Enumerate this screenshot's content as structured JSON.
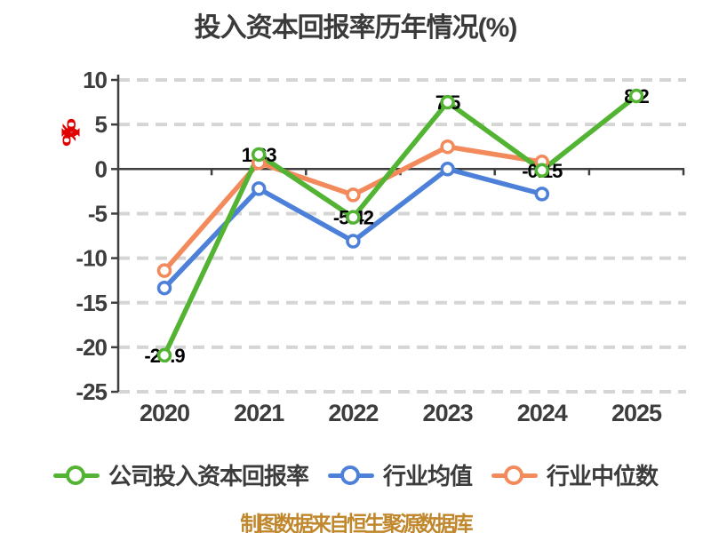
{
  "title": "投入资本回报率历年情况(%)",
  "unit_mark": {
    "text": "(%)",
    "color": "#e10000"
  },
  "source_note": {
    "text": "制图数据来自恒生聚源数据库",
    "color": "#c0872c"
  },
  "chart_data": {
    "type": "line",
    "title": "投入资本回报率历年情况(%)",
    "categories": [
      "2020",
      "2021",
      "2022",
      "2023",
      "2024",
      "2025"
    ],
    "y_ticks": [
      10,
      5,
      0,
      -5,
      -10,
      -15,
      -20,
      -25
    ],
    "ylim": [
      -25,
      10
    ],
    "xlabel": "",
    "ylabel": "",
    "grid": "horizontal-dashed",
    "legend_position": "bottom",
    "colors": {
      "grid": "#d5d5d5",
      "axis": "#3f3f3f",
      "tick_label": "#3d3d3d",
      "data_label": "#000000",
      "background": "#ffffff"
    },
    "series": [
      {
        "name": "公司投入资本回报率",
        "color": "#53b332",
        "values": [
          -20.9,
          1.63,
          -5.42,
          7.5,
          -0.15,
          8.2
        ],
        "point_labels": [
          "-20.9",
          "1.63",
          "-5.42",
          "7.5",
          "-0.15",
          "8.2"
        ],
        "labels_shown": true
      },
      {
        "name": "行业均值",
        "color": "#4d80d8",
        "values": [
          -13.35,
          -2.2,
          -8.1,
          0,
          -2.8,
          null
        ],
        "point_labels": [],
        "labels_shown": false
      },
      {
        "name": "行业中位数",
        "color": "#f28a5c",
        "values": [
          -11.4,
          0.7,
          -2.9,
          2.5,
          0.8,
          null
        ],
        "point_labels": [],
        "labels_shown": false
      }
    ]
  }
}
